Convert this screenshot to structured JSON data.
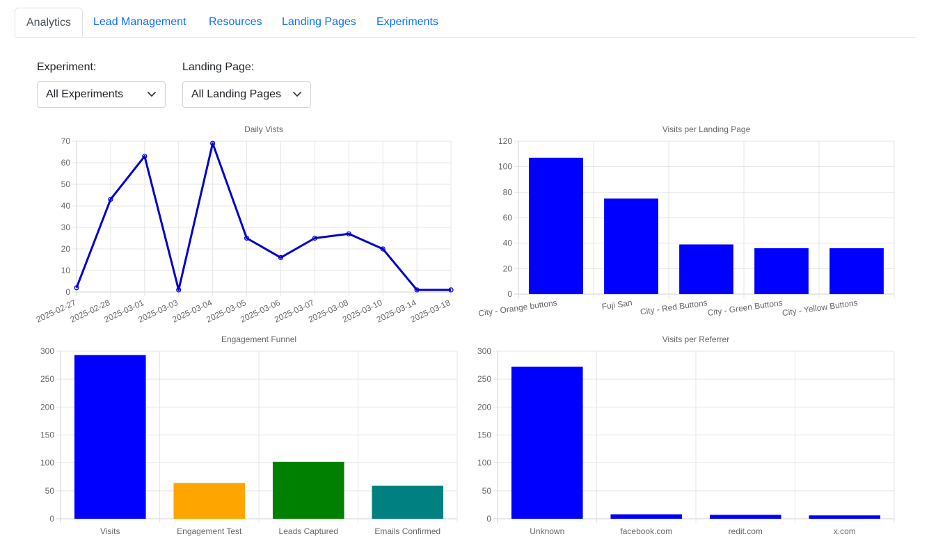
{
  "tabs": [
    {
      "label": "Analytics",
      "active": true
    },
    {
      "label": "Lead Management",
      "active": false
    },
    {
      "label": "Resources",
      "active": false
    },
    {
      "label": "Landing Pages",
      "active": false
    },
    {
      "label": "Experiments",
      "active": false
    }
  ],
  "filters": {
    "experiment": {
      "label": "Experiment:",
      "value": "All Experiments"
    },
    "landing_page": {
      "label": "Landing Page:",
      "value": "All Landing Pages"
    }
  },
  "chart_data": [
    {
      "type": "line",
      "title": "Daily Vists",
      "x": [
        "2025-02-27",
        "2025-02-28",
        "2025-03-01",
        "2025-03-03",
        "2025-03-04",
        "2025-03-05",
        "2025-03-06",
        "2025-03-07",
        "2025-03-08",
        "2025-03-10",
        "2025-03-14",
        "2025-03-18"
      ],
      "values": [
        2,
        43,
        63,
        1,
        69,
        25,
        16,
        25,
        27,
        20,
        1,
        1
      ],
      "ylim": [
        0,
        70
      ],
      "yticks": [
        0,
        10,
        20,
        30,
        40,
        50,
        60,
        70
      ],
      "color": "#0000cc",
      "grid": true,
      "legend": "none"
    },
    {
      "type": "bar",
      "title": "Visits per Landing Page",
      "categories": [
        "City - Orange buttons",
        "Fuji San",
        "City - Red Buttons",
        "City - Green Buttons",
        "City - Yellow Buttons"
      ],
      "values": [
        107,
        75,
        39,
        36,
        36
      ],
      "ylim": [
        0,
        120
      ],
      "yticks": [
        0,
        20,
        40,
        60,
        80,
        100,
        120
      ],
      "colors": [
        "#0000ff",
        "#0000ff",
        "#0000ff",
        "#0000ff",
        "#0000ff"
      ],
      "grid": true,
      "legend": "none"
    },
    {
      "type": "bar",
      "title": "Engagement Funnel",
      "categories": [
        "Visits",
        "Engagement Test",
        "Leads Captured",
        "Emails Confirmed"
      ],
      "values": [
        293,
        64,
        102,
        59
      ],
      "ylim": [
        0,
        300
      ],
      "yticks": [
        0,
        50,
        100,
        150,
        200,
        250,
        300
      ],
      "colors": [
        "#0000ff",
        "#ffa500",
        "#008000",
        "#008080"
      ],
      "grid": true,
      "legend": "none"
    },
    {
      "type": "bar",
      "title": "Visits per Referrer",
      "categories": [
        "Unknown",
        "facebook.com",
        "redit.com",
        "x.com"
      ],
      "values": [
        272,
        8,
        7,
        6
      ],
      "ylim": [
        0,
        300
      ],
      "yticks": [
        0,
        50,
        100,
        150,
        200,
        250,
        300
      ],
      "colors": [
        "#0000ff",
        "#0000ff",
        "#0000ff",
        "#0000ff"
      ],
      "grid": true,
      "legend": "none"
    }
  ]
}
